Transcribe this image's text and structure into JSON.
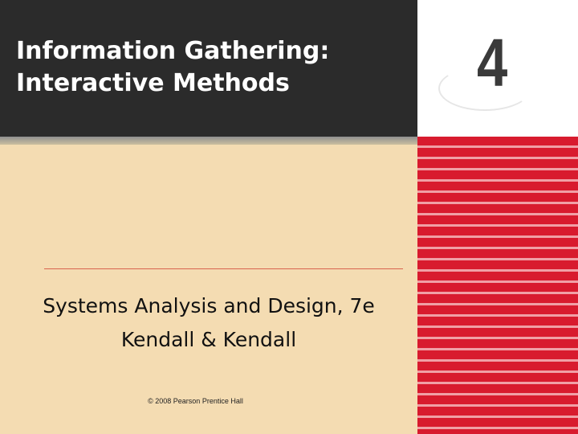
{
  "slide": {
    "title_line1": "Information Gathering:",
    "title_line2": "Interactive Methods",
    "chapter_number": "4",
    "book_title": "Systems Analysis and Design, 7e",
    "authors": "Kendall & Kendall",
    "copyright": "© 2008 Pearson Prentice Hall"
  },
  "colors": {
    "title_bg": "#2b2b2b",
    "body_bg": "#f4dcb2",
    "stripe_red": "#d81b2e",
    "divider": "#d9634f"
  }
}
